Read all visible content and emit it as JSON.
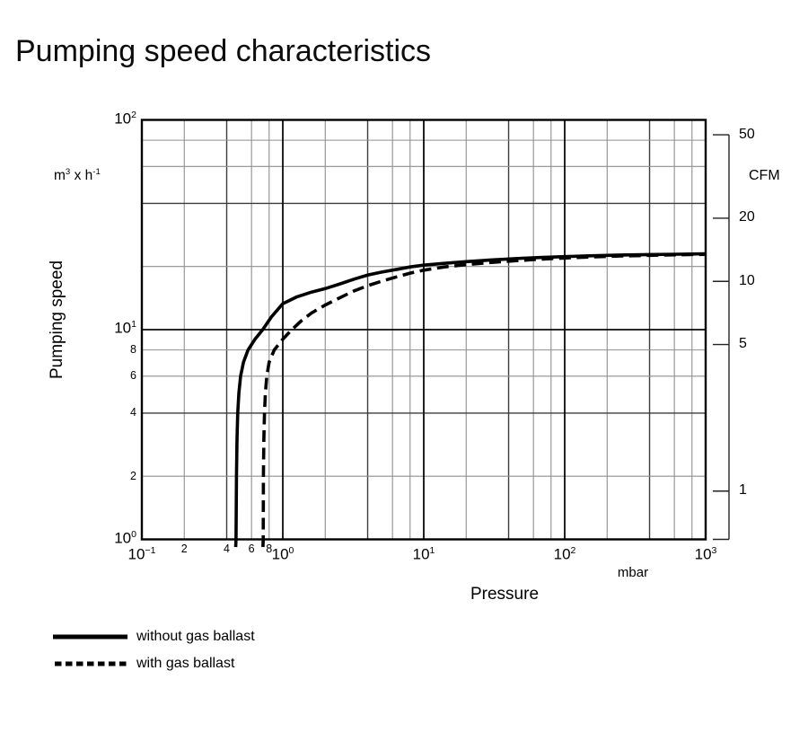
{
  "title": "Pumping speed characteristics",
  "axes": {
    "y_left": {
      "quantity": "Pumping speed",
      "unit_parts": {
        "base1": "m",
        "sup1": "3",
        "times": " x ",
        "base2": "h",
        "sup2": "-1"
      }
    },
    "x": {
      "quantity": "Pressure",
      "unit": "mbar"
    },
    "y_right": {
      "unit": "CFM"
    }
  },
  "legend": {
    "items": [
      {
        "label": "without gas ballast",
        "style": "solid"
      },
      {
        "label": "with gas ballast",
        "style": "dashed"
      }
    ]
  },
  "colors": {
    "curve": "#000000",
    "border": "#000000",
    "grid_major": "#0a0a0a",
    "grid_minor": "#8f8f8f",
    "grid_minor_dark": "#3c3c3c",
    "ruler": "#222222"
  },
  "chart_data": {
    "type": "line",
    "title": "Pumping speed characteristics",
    "xlabel": "Pressure",
    "x_unit": "mbar",
    "x_scale": "log",
    "x_range": [
      0.1,
      1000
    ],
    "ylabel": "Pumping speed",
    "y_unit": "m3 x h-1",
    "y_scale": "log",
    "y_range": [
      1,
      100
    ],
    "grid": true,
    "x_major_tick_exponents": [
      -1,
      0,
      1,
      2,
      3
    ],
    "y_major_tick_exponents": [
      0,
      1,
      2
    ],
    "minor_divisions": [
      2,
      4,
      6,
      8
    ],
    "x_minor_labels": {
      "decade_exponent": -1,
      "values": [
        2,
        4,
        6,
        8
      ]
    },
    "y_minor_labels": {
      "decade_exponent": 0,
      "values": [
        2,
        4,
        6,
        8
      ]
    },
    "y2_label": "CFM",
    "y2_ticks": [
      50,
      20,
      10,
      5,
      1
    ],
    "y2_cfm_per_m3h": 0.58858,
    "series": [
      {
        "name": "without gas ballast",
        "line": "solid",
        "points": [
          [
            0.466,
            1
          ],
          [
            0.469,
            2
          ],
          [
            0.473,
            3
          ],
          [
            0.479,
            4
          ],
          [
            0.488,
            5
          ],
          [
            0.502,
            6
          ],
          [
            0.526,
            7
          ],
          [
            0.567,
            8
          ],
          [
            0.635,
            9
          ],
          [
            0.72,
            10
          ],
          [
            0.83,
            11.5
          ],
          [
            1.0,
            13.3
          ],
          [
            1.25,
            14.3
          ],
          [
            1.6,
            15.1
          ],
          [
            2.0,
            15.7
          ],
          [
            2.6,
            16.6
          ],
          [
            3.2,
            17.4
          ],
          [
            4.0,
            18.2
          ],
          [
            5.0,
            18.8
          ],
          [
            6.5,
            19.4
          ],
          [
            8.0,
            19.9
          ],
          [
            10,
            20.3
          ],
          [
            14,
            20.7
          ],
          [
            20,
            21.1
          ],
          [
            30,
            21.5
          ],
          [
            50,
            21.9
          ],
          [
            70,
            22.1
          ],
          [
            100,
            22.3
          ],
          [
            150,
            22.5
          ],
          [
            250,
            22.7
          ],
          [
            400,
            22.8
          ],
          [
            650,
            22.9
          ],
          [
            1000,
            23.0
          ]
        ]
      },
      {
        "name": "with gas ballast",
        "line": "dashed",
        "points": [
          [
            0.726,
            1
          ],
          [
            0.729,
            2
          ],
          [
            0.734,
            3
          ],
          [
            0.741,
            4
          ],
          [
            0.752,
            5
          ],
          [
            0.77,
            6
          ],
          [
            0.8,
            7
          ],
          [
            0.87,
            8
          ],
          [
            1.0,
            9
          ],
          [
            1.16,
            10
          ],
          [
            1.35,
            11
          ],
          [
            1.6,
            12
          ],
          [
            2.0,
            13.1
          ],
          [
            2.6,
            14.3
          ],
          [
            3.2,
            15.3
          ],
          [
            4.0,
            16.2
          ],
          [
            5.0,
            17.0
          ],
          [
            6.5,
            17.9
          ],
          [
            8.0,
            18.6
          ],
          [
            10,
            19.2
          ],
          [
            14,
            19.9
          ],
          [
            20,
            20.4
          ],
          [
            30,
            20.9
          ],
          [
            50,
            21.4
          ],
          [
            70,
            21.7
          ],
          [
            100,
            21.95
          ],
          [
            150,
            22.2
          ],
          [
            250,
            22.45
          ],
          [
            400,
            22.6
          ],
          [
            650,
            22.75
          ],
          [
            1000,
            22.85
          ]
        ]
      }
    ]
  }
}
